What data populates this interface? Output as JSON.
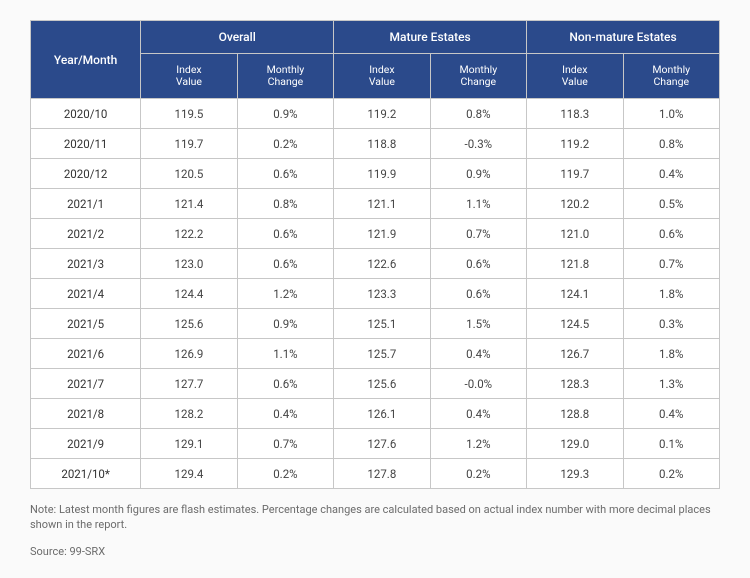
{
  "type": "table",
  "colors": {
    "header_bg": "#2b4a8b",
    "header_text": "#ffffff",
    "border": "#c7c7c7",
    "cell_bg": "#ffffff",
    "cell_text": "#444444",
    "note_text": "#6b6b6b",
    "page_bg": "#fafafa"
  },
  "typography": {
    "header_fontsize_pt": 9,
    "subheader_fontsize_pt": 8,
    "cell_fontsize_pt": 8.5,
    "note_fontsize_pt": 8
  },
  "column_widths_pct": [
    16,
    14,
    14,
    14,
    14,
    14,
    14
  ],
  "header": {
    "ym": "Year/Month",
    "groups": [
      "Overall",
      "Mature Estates",
      "Non-mature Estates"
    ],
    "sub": [
      "Index\nValue",
      "Monthly\nChange"
    ]
  },
  "rows": [
    {
      "ym": "2020/10",
      "overall_idx": "119.5",
      "overall_chg": "0.9%",
      "mature_idx": "119.2",
      "mature_chg": "0.8%",
      "nonmature_idx": "118.3",
      "nonmature_chg": "1.0%"
    },
    {
      "ym": "2020/11",
      "overall_idx": "119.7",
      "overall_chg": "0.2%",
      "mature_idx": "118.8",
      "mature_chg": "-0.3%",
      "nonmature_idx": "119.2",
      "nonmature_chg": "0.8%"
    },
    {
      "ym": "2020/12",
      "overall_idx": "120.5",
      "overall_chg": "0.6%",
      "mature_idx": "119.9",
      "mature_chg": "0.9%",
      "nonmature_idx": "119.7",
      "nonmature_chg": "0.4%"
    },
    {
      "ym": "2021/1",
      "overall_idx": "121.4",
      "overall_chg": "0.8%",
      "mature_idx": "121.1",
      "mature_chg": "1.1%",
      "nonmature_idx": "120.2",
      "nonmature_chg": "0.5%"
    },
    {
      "ym": "2021/2",
      "overall_idx": "122.2",
      "overall_chg": "0.6%",
      "mature_idx": "121.9",
      "mature_chg": "0.7%",
      "nonmature_idx": "121.0",
      "nonmature_chg": "0.6%"
    },
    {
      "ym": "2021/3",
      "overall_idx": "123.0",
      "overall_chg": "0.6%",
      "mature_idx": "122.6",
      "mature_chg": "0.6%",
      "nonmature_idx": "121.8",
      "nonmature_chg": "0.7%"
    },
    {
      "ym": "2021/4",
      "overall_idx": "124.4",
      "overall_chg": "1.2%",
      "mature_idx": "123.3",
      "mature_chg": "0.6%",
      "nonmature_idx": "124.1",
      "nonmature_chg": "1.8%"
    },
    {
      "ym": "2021/5",
      "overall_idx": "125.6",
      "overall_chg": "0.9%",
      "mature_idx": "125.1",
      "mature_chg": "1.5%",
      "nonmature_idx": "124.5",
      "nonmature_chg": "0.3%"
    },
    {
      "ym": "2021/6",
      "overall_idx": "126.9",
      "overall_chg": "1.1%",
      "mature_idx": "125.7",
      "mature_chg": "0.4%",
      "nonmature_idx": "126.7",
      "nonmature_chg": "1.8%"
    },
    {
      "ym": "2021/7",
      "overall_idx": "127.7",
      "overall_chg": "0.6%",
      "mature_idx": "125.6",
      "mature_chg": "-0.0%",
      "nonmature_idx": "128.3",
      "nonmature_chg": "1.3%"
    },
    {
      "ym": "2021/8",
      "overall_idx": "128.2",
      "overall_chg": "0.4%",
      "mature_idx": "126.1",
      "mature_chg": "0.4%",
      "nonmature_idx": "128.8",
      "nonmature_chg": "0.4%"
    },
    {
      "ym": "2021/9",
      "overall_idx": "129.1",
      "overall_chg": "0.7%",
      "mature_idx": "127.6",
      "mature_chg": "1.2%",
      "nonmature_idx": "129.0",
      "nonmature_chg": "0.1%"
    },
    {
      "ym": "2021/10*",
      "overall_idx": "129.4",
      "overall_chg": "0.2%",
      "mature_idx": "127.8",
      "mature_chg": "0.2%",
      "nonmature_idx": "129.3",
      "nonmature_chg": "0.2%"
    }
  ],
  "note": "Note: Latest month figures are flash estimates. Percentage changes are calculated based on actual index number with more decimal places shown in the report.",
  "source": "Source: 99-SRX"
}
